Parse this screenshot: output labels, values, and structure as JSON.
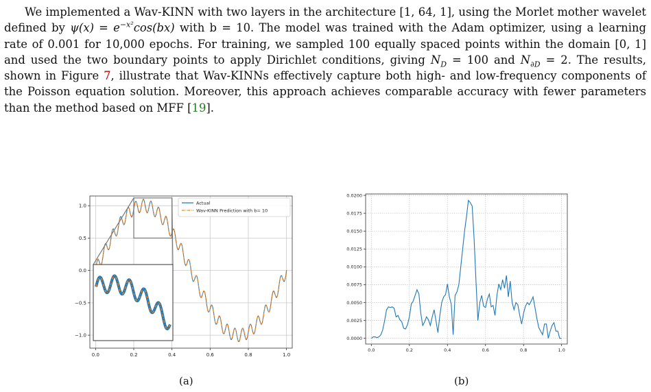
{
  "paragraph": {
    "s1": "We implemented a Wav-KINN with two layers in the architecture [1, 64, 1], using the Morlet mother wavelet defined by ",
    "s1_formula": "ψ(x) = e",
    "s1_sup": "−x²",
    "s1_formula_tail": "cos(bx)",
    "s2": " with b = 10. The model was trained with the Adam optimizer, using a learning rate of 0.001 for 10,000 epochs. For training, we sampled 100 equally spaced points within the domain [0, 1] and used the two boundary points to apply Dirichlet conditions, giving ",
    "nd": "N",
    "nd_sub": "D",
    "s3": " = 100 and ",
    "nbd": "N",
    "nbd_sub": "∂D",
    "s4": " = 2. The results, shown in Figure ",
    "fig_ref": "7",
    "s5": ", illustrate that Wav-KINNs effectively capture both high- and low-frequency components of the Poisson equation solution. Moreover, this approach achieves comparable accuracy with fewer parameters than the method based on MFF [",
    "cite_ref": "19",
    "s6": "]."
  },
  "figure_a": {
    "caption": "(a)",
    "legend": [
      "Actual",
      "Wav-KINN Prediction with b= 10"
    ],
    "chart_data": {
      "type": "line",
      "x_ticks": [
        "0.0",
        "0.2",
        "0.4",
        "0.6",
        "0.8",
        "1.0"
      ],
      "y_ticks": [
        "1.0",
        "0.5",
        "0.0",
        "−0.5",
        "−1.0"
      ],
      "xlim": [
        -0.03,
        1.03
      ],
      "ylim": [
        -1.2,
        1.15
      ],
      "grid": true,
      "legend_position": "top-right",
      "inset": "zoomed view of x in [0.2, 0.4], lower-left",
      "series": [
        {
          "name": "Actual",
          "color": "#1f77b4",
          "style": "solid"
        },
        {
          "name": "Wav-KINN Prediction with b= 10",
          "color": "#ff7f0e",
          "style": "dashdot"
        }
      ]
    }
  },
  "figure_b": {
    "caption": "(b)",
    "chart_data": {
      "type": "line",
      "x_ticks": [
        "0.0",
        "0.2",
        "0.4",
        "0.6",
        "0.8",
        "1.0"
      ],
      "y_ticks": [
        "0.0200",
        "0.0175",
        "0.0150",
        "0.0125",
        "0.0100",
        "0.0075",
        "0.0050",
        "0.0025",
        "0.0000"
      ],
      "xlim": [
        -0.03,
        1.03
      ],
      "ylim": [
        -0.0008,
        0.0202
      ],
      "grid": true,
      "series": [
        {
          "color": "#1f77b4",
          "x": [
            0.0,
            0.01,
            0.02,
            0.03,
            0.04,
            0.05,
            0.06,
            0.07,
            0.08,
            0.09,
            0.1,
            0.11,
            0.12,
            0.13,
            0.14,
            0.15,
            0.16,
            0.17,
            0.18,
            0.19,
            0.2,
            0.21,
            0.22,
            0.23,
            0.24,
            0.25,
            0.26,
            0.27,
            0.28,
            0.29,
            0.3,
            0.31,
            0.32,
            0.33,
            0.34,
            0.35,
            0.36,
            0.37,
            0.38,
            0.39,
            0.4,
            0.41,
            0.42,
            0.43,
            0.44,
            0.45,
            0.46,
            0.47,
            0.48,
            0.49,
            0.5,
            0.51,
            0.52,
            0.53,
            0.54,
            0.55,
            0.56,
            0.57,
            0.58,
            0.59,
            0.6,
            0.61,
            0.62,
            0.63,
            0.64,
            0.65,
            0.66,
            0.67,
            0.68,
            0.69,
            0.7,
            0.71,
            0.72,
            0.73,
            0.74,
            0.75,
            0.76,
            0.77,
            0.78,
            0.79,
            0.8,
            0.81,
            0.82,
            0.83,
            0.84,
            0.85,
            0.86,
            0.87,
            0.88,
            0.89,
            0.9,
            0.91,
            0.92,
            0.93,
            0.94,
            0.95,
            0.96,
            0.97,
            0.98,
            0.99,
            1.0
          ],
          "y": [
            0.0,
            0.0002,
            0.0002,
            0.0001,
            0.0002,
            0.0005,
            0.0012,
            0.0025,
            0.004,
            0.0044,
            0.0043,
            0.0044,
            0.0042,
            0.003,
            0.0032,
            0.0026,
            0.0023,
            0.0014,
            0.0013,
            0.0019,
            0.003,
            0.0048,
            0.0052,
            0.006,
            0.0068,
            0.0062,
            0.0035,
            0.0018,
            0.0023,
            0.003,
            0.0026,
            0.0018,
            0.003,
            0.004,
            0.0024,
            0.0008,
            0.0032,
            0.005,
            0.0058,
            0.0061,
            0.0076,
            0.0058,
            0.0048,
            0.0005,
            0.006,
            0.0065,
            0.0075,
            0.01,
            0.0125,
            0.015,
            0.017,
            0.0193,
            0.019,
            0.0185,
            0.014,
            0.008,
            0.0025,
            0.005,
            0.006,
            0.0045,
            0.0043,
            0.0055,
            0.0062,
            0.0044,
            0.0046,
            0.0032,
            0.006,
            0.0076,
            0.0068,
            0.0082,
            0.007,
            0.0088,
            0.0058,
            0.008,
            0.005,
            0.004,
            0.005,
            0.0047,
            0.0032,
            0.002,
            0.0035,
            0.0045,
            0.005,
            0.0047,
            0.0052,
            0.0058,
            0.0043,
            0.0028,
            0.0015,
            0.001,
            0.0005,
            0.002,
            0.002,
            0.0,
            0.001,
            0.0018,
            0.0022,
            0.001,
            0.001,
            0.0,
            0.0
          ]
        }
      ]
    }
  }
}
